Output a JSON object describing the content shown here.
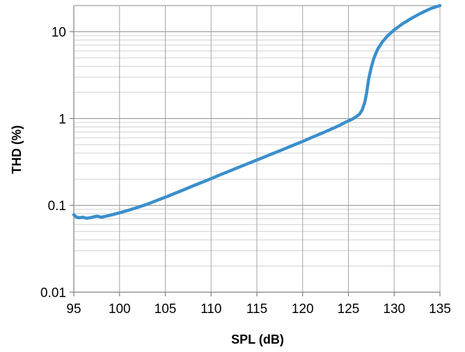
{
  "chart_data": {
    "type": "line",
    "title": "",
    "xlabel": "SPL (dB)",
    "ylabel": "THD (%)",
    "xlim": [
      95,
      135
    ],
    "ylim": [
      0.01,
      20
    ],
    "yscale": "log",
    "xticks": [
      95,
      100,
      105,
      110,
      115,
      120,
      125,
      130,
      135
    ],
    "xtick_labels": [
      "95",
      "100",
      "105",
      "110",
      "115",
      "120",
      "125",
      "130",
      "135"
    ],
    "yticks": [
      0.01,
      0.1,
      1,
      10
    ],
    "ytick_labels": [
      "0.01",
      "0.1",
      "1",
      "10"
    ],
    "grid": true,
    "legend": "none",
    "colors": {
      "line": "#3a8fcb",
      "grid_major": "#8c8c8c",
      "grid_minor": "#d0d0d0",
      "grid_x": "#a6a6a6",
      "axis": "#808080"
    },
    "series": [
      {
        "x": [
          95,
          95.3,
          95.6,
          96,
          96.4,
          96.8,
          97.2,
          97.6,
          98,
          98.5,
          99,
          100,
          101,
          102,
          103,
          104,
          105,
          106,
          107,
          108,
          109,
          110,
          111,
          112,
          113,
          114,
          115,
          116,
          117,
          118,
          119,
          120,
          121,
          122,
          123,
          124,
          124.8,
          125.4,
          125.8,
          126.2,
          126.5,
          126.8,
          127,
          127.2,
          127.5,
          127.8,
          128.2,
          128.7,
          129.3,
          130,
          131,
          132,
          133,
          134,
          135
        ],
        "values": [
          0.078,
          0.073,
          0.072,
          0.073,
          0.071,
          0.072,
          0.074,
          0.075,
          0.073,
          0.075,
          0.077,
          0.082,
          0.088,
          0.095,
          0.103,
          0.113,
          0.124,
          0.137,
          0.151,
          0.167,
          0.184,
          0.203,
          0.225,
          0.248,
          0.274,
          0.302,
          0.333,
          0.367,
          0.405,
          0.447,
          0.494,
          0.545,
          0.605,
          0.67,
          0.745,
          0.83,
          0.92,
          0.98,
          1.04,
          1.12,
          1.25,
          1.55,
          2.0,
          2.8,
          3.9,
          5.0,
          6.3,
          7.6,
          9.0,
          10.5,
          12.5,
          14.5,
          16.5,
          18.5,
          20
        ]
      }
    ]
  }
}
